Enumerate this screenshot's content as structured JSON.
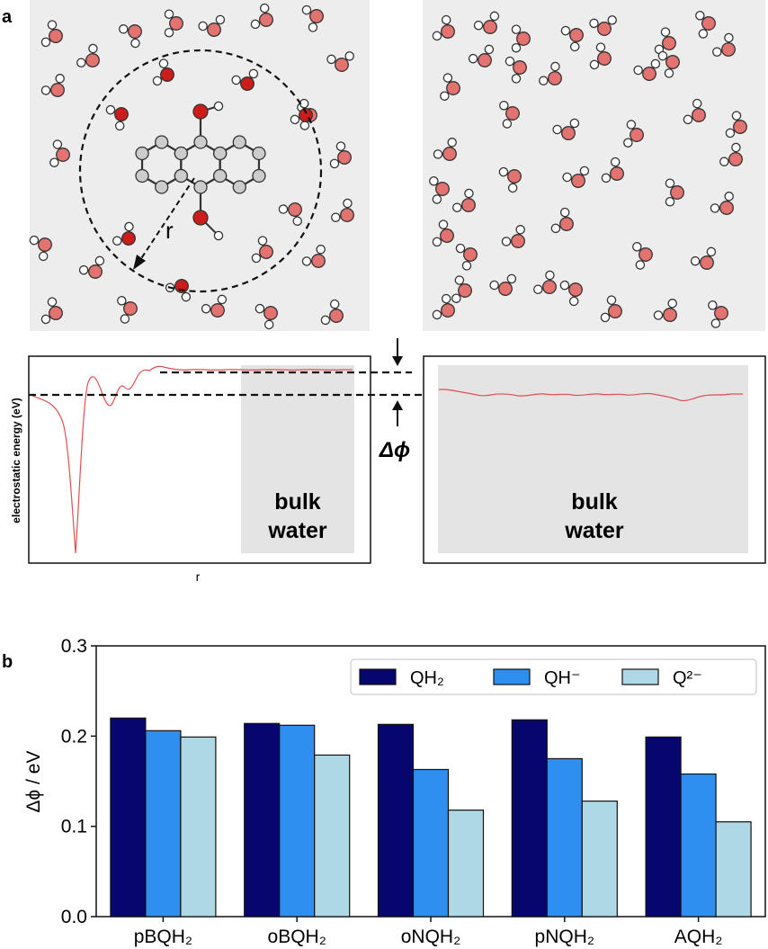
{
  "panel_a": {
    "label": "a",
    "radius_label": "r",
    "energy_axis_label": "electrostatic energy (eV)",
    "r_axis_label": "r",
    "delta_label": "Δϕ",
    "bulk_line1": "bulk",
    "bulk_line2": "water",
    "bulk_right_line1": "bulk",
    "bulk_right_line2": "water",
    "colors": {
      "oxygen": "#e27370",
      "oxygen_bound": "#cc1c1c",
      "carbon": "#cccccc",
      "curve": "#e05050",
      "box": "#ededed",
      "bulk_box": "#e4e4e4"
    }
  },
  "chart_data": {
    "type": "bar",
    "panel_label": "b",
    "categories": [
      "pBQH₂",
      "oBQH₂",
      "oNQH₂",
      "pNQH₂",
      "AQH₂"
    ],
    "series": [
      {
        "name": "QH₂",
        "color": "#06066e",
        "values": [
          0.22,
          0.214,
          0.213,
          0.218,
          0.199
        ]
      },
      {
        "name": "QH⁻",
        "color": "#2f8ff0",
        "values": [
          0.206,
          0.212,
          0.163,
          0.175,
          0.158
        ]
      },
      {
        "name": "Q²⁻",
        "color": "#aed8e6",
        "values": [
          0.199,
          0.179,
          0.118,
          0.128,
          0.105
        ]
      }
    ],
    "ylabel": "Δϕ / eV",
    "ylim": [
      0.0,
      0.3
    ],
    "yticks": [
      "0.0",
      "0.1",
      "0.2",
      "0.3"
    ],
    "legend_position": "top-right",
    "grid": false
  }
}
